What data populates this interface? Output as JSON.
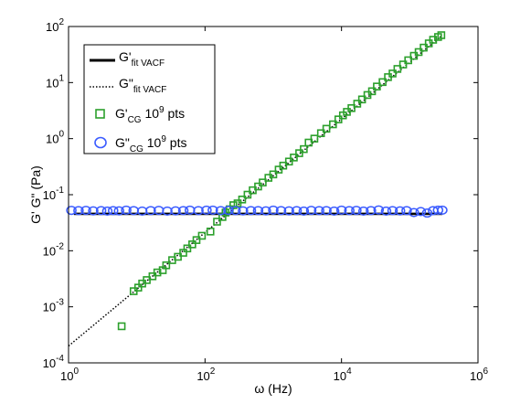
{
  "chart_data": {
    "type": "scatter",
    "title": "",
    "xlabel": "ω (Hz)",
    "ylabel": "G' G\" (Pa)",
    "xscale": "log",
    "yscale": "log",
    "xlim": [
      1,
      1000000
    ],
    "ylim": [
      0.0001,
      100
    ],
    "grid": false,
    "legend_position": "top-left",
    "x_ticks": [
      {
        "base": "10",
        "exp": "0"
      },
      {
        "base": "10",
        "exp": "2"
      },
      {
        "base": "10",
        "exp": "4"
      },
      {
        "base": "10",
        "exp": "6"
      }
    ],
    "y_ticks": [
      {
        "base": "10",
        "exp": "-4"
      },
      {
        "base": "10",
        "exp": "-3"
      },
      {
        "base": "10",
        "exp": "-2"
      },
      {
        "base": "10",
        "exp": "-1"
      },
      {
        "base": "10",
        "exp": "0"
      },
      {
        "base": "10",
        "exp": "1"
      },
      {
        "base": "10",
        "exp": "2"
      }
    ],
    "legend": [
      {
        "main": "G'",
        "sub": "fit VACF",
        "tail": "",
        "sup": "",
        "tail2": "",
        "style": "line",
        "color": "#000000"
      },
      {
        "main": "G\"",
        "sub": "fit VACF",
        "tail": "",
        "sup": "",
        "tail2": "",
        "style": "dotted",
        "color": "#000000"
      },
      {
        "main": "G'",
        "sub": "CG",
        "tail": " 10",
        "sup": "9",
        "tail2": " pts",
        "style": "square",
        "color": "#2ca02c"
      },
      {
        "main": "G\"",
        "sub": "CG",
        "tail": " 10",
        "sup": "9",
        "tail2": " pts",
        "style": "circle",
        "color": "#3a5bff"
      }
    ],
    "series": [
      {
        "name": "G'fit VACF",
        "style": "line",
        "color": "#000000",
        "x": [
          1.2,
          300000
        ],
        "y": [
          0.0455,
          0.0455
        ]
      },
      {
        "name": "G\"fit VACF",
        "style": "dotted",
        "color": "#000000",
        "x": [
          1,
          300000
        ],
        "y": [
          0.0002,
          70
        ]
      },
      {
        "name": "G'CG 10^9 pts",
        "style": "square",
        "color": "#2ca02c",
        "x": [
          6,
          9,
          10.5,
          12,
          14,
          17,
          20,
          24,
          27,
          33,
          40,
          48,
          55,
          65,
          75,
          90,
          120,
          150,
          180,
          200,
          230,
          260,
          300,
          350,
          420,
          500,
          600,
          700,
          850,
          1000,
          1200,
          1400,
          1700,
          2000,
          2400,
          2800,
          3300,
          4000,
          5000,
          6000,
          7500,
          9000,
          10500,
          12000,
          14000,
          17000,
          20000,
          24000,
          28000,
          33000,
          40000,
          48000,
          56000,
          66000,
          80000,
          95000,
          115000,
          135000,
          160000,
          190000,
          220000,
          260000,
          290000
        ],
        "y": [
          0.00045,
          0.0019,
          0.0022,
          0.0026,
          0.003,
          0.0035,
          0.0041,
          0.0045,
          0.0055,
          0.0068,
          0.0078,
          0.0092,
          0.011,
          0.013,
          0.0155,
          0.0185,
          0.022,
          0.033,
          0.04,
          0.048,
          0.055,
          0.065,
          0.07,
          0.082,
          0.1,
          0.12,
          0.14,
          0.165,
          0.2,
          0.23,
          0.28,
          0.33,
          0.39,
          0.46,
          0.55,
          0.65,
          0.85,
          1.0,
          1.25,
          1.5,
          1.8,
          2.2,
          2.6,
          3.0,
          3.5,
          4.2,
          5.0,
          6.0,
          7.0,
          8.5,
          10.2,
          12.5,
          14.5,
          17.5,
          21,
          25,
          30,
          35,
          42,
          50,
          58,
          65,
          70
        ]
      },
      {
        "name": "G\"CG 10^9 pts",
        "style": "circle",
        "color": "#3a5bff",
        "x": [
          1.1,
          1.4,
          1.8,
          2.3,
          3,
          3.7,
          4.5,
          5.5,
          7,
          9,
          12,
          16,
          21,
          28,
          37,
          48,
          60,
          80,
          105,
          130,
          170,
          220,
          280,
          360,
          470,
          600,
          780,
          1000,
          1300,
          1700,
          2200,
          2800,
          3600,
          4700,
          6000,
          7800,
          10000,
          13000,
          16500,
          21000,
          27000,
          35000,
          45000,
          56000,
          72000,
          90000,
          115000,
          145000,
          180000,
          220000,
          260000,
          300000
        ],
        "y": [
          0.0525,
          0.052,
          0.0525,
          0.0515,
          0.052,
          0.051,
          0.052,
          0.0515,
          0.053,
          0.052,
          0.051,
          0.052,
          0.0525,
          0.051,
          0.0515,
          0.052,
          0.053,
          0.052,
          0.053,
          0.053,
          0.052,
          0.0525,
          0.052,
          0.0515,
          0.052,
          0.052,
          0.0515,
          0.053,
          0.052,
          0.0515,
          0.052,
          0.051,
          0.0525,
          0.052,
          0.052,
          0.051,
          0.053,
          0.052,
          0.0525,
          0.051,
          0.052,
          0.0535,
          0.051,
          0.052,
          0.0515,
          0.052,
          0.048,
          0.05,
          0.047,
          0.052,
          0.053,
          0.053
        ]
      }
    ]
  }
}
